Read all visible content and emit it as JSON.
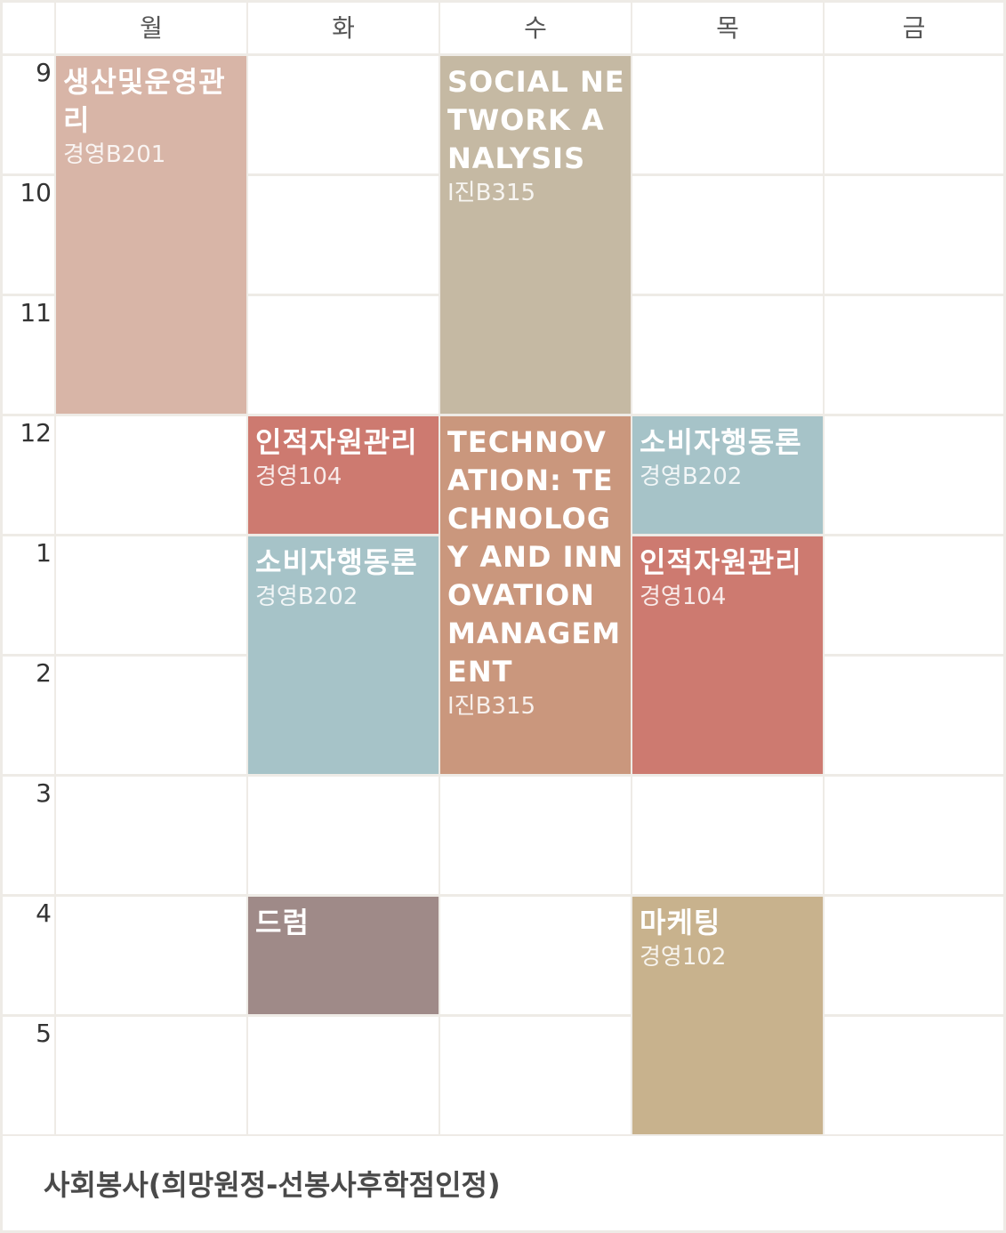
{
  "days": [
    "월",
    "화",
    "수",
    "목",
    "금"
  ],
  "hours": [
    "9",
    "10",
    "11",
    "12",
    "1",
    "2",
    "3",
    "4",
    "5"
  ],
  "courses": [
    {
      "title": "생산및운영관리",
      "room": "경영B201",
      "day": 0,
      "start": 0,
      "span": 3,
      "color": "#d8b5a7"
    },
    {
      "title": "SOCIAL NETWORK ANALYSIS",
      "room": "I진B315",
      "day": 2,
      "start": 0,
      "span": 3,
      "color": "#c5b9a3"
    },
    {
      "title": "인적자원관리",
      "room": "경영104",
      "day": 1,
      "start": 3,
      "span": 1,
      "color": "#cd7a70"
    },
    {
      "title": "TECHNOVATION: TECHNOLOGY AND INNOVATION MANAGEMENT",
      "room": "I진B315",
      "day": 2,
      "start": 3,
      "span": 3,
      "color": "#ca977d"
    },
    {
      "title": "소비자행동론",
      "room": "경영B202",
      "day": 3,
      "start": 3,
      "span": 1,
      "color": "#a6c3c8"
    },
    {
      "title": "소비자행동론",
      "room": "경영B202",
      "day": 1,
      "start": 4,
      "span": 2,
      "color": "#a6c3c8"
    },
    {
      "title": "인적자원관리",
      "room": "경영104",
      "day": 3,
      "start": 4,
      "span": 2,
      "color": "#cd7a70"
    },
    {
      "title": "드럼",
      "room": "",
      "day": 1,
      "start": 7,
      "span": 1,
      "color": "#9f8a88"
    },
    {
      "title": "마케팅",
      "room": "경영102",
      "day": 3,
      "start": 7,
      "span": 2,
      "color": "#c8b28d"
    }
  ],
  "footer": {
    "note": "사회봉사(희망원정-선봉사후학점인정)"
  }
}
